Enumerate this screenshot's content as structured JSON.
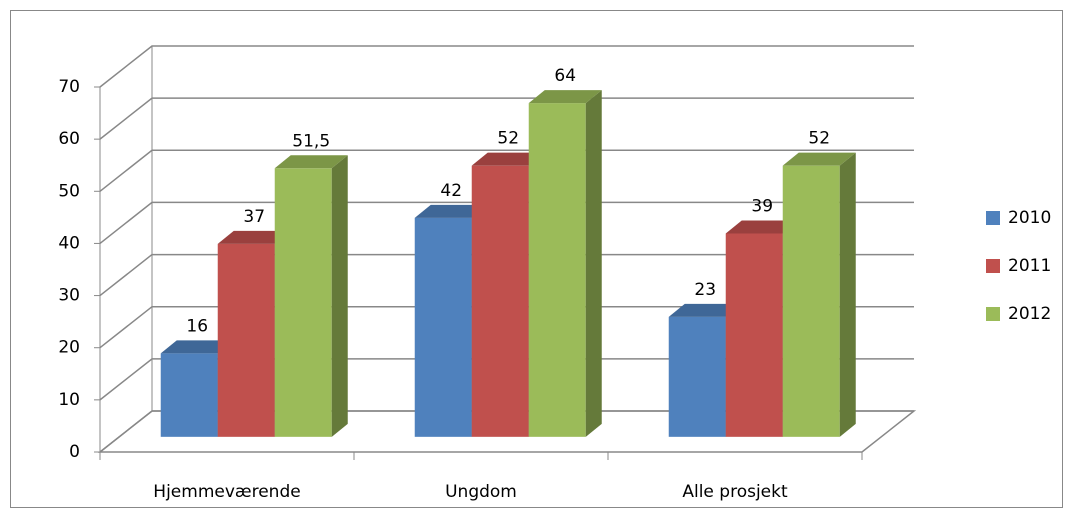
{
  "chart_data": {
    "type": "bar3d",
    "categories": [
      "Hjemmeværende",
      "Ungdom",
      "Alle prosjekt"
    ],
    "series": [
      {
        "name": "2010",
        "color": "#4f81bd",
        "values": [
          16,
          42,
          23
        ]
      },
      {
        "name": "2011",
        "color": "#c0504d",
        "values": [
          37,
          52,
          39
        ]
      },
      {
        "name": "2012",
        "color": "#9bbb59",
        "values": [
          51.5,
          64,
          52
        ],
        "value_labels": [
          "51,5",
          "64",
          "52"
        ]
      }
    ],
    "ylim": [
      0,
      70
    ],
    "yticks": [
      0,
      10,
      20,
      30,
      40,
      50,
      60,
      70
    ],
    "grid": true,
    "legend": "right"
  }
}
